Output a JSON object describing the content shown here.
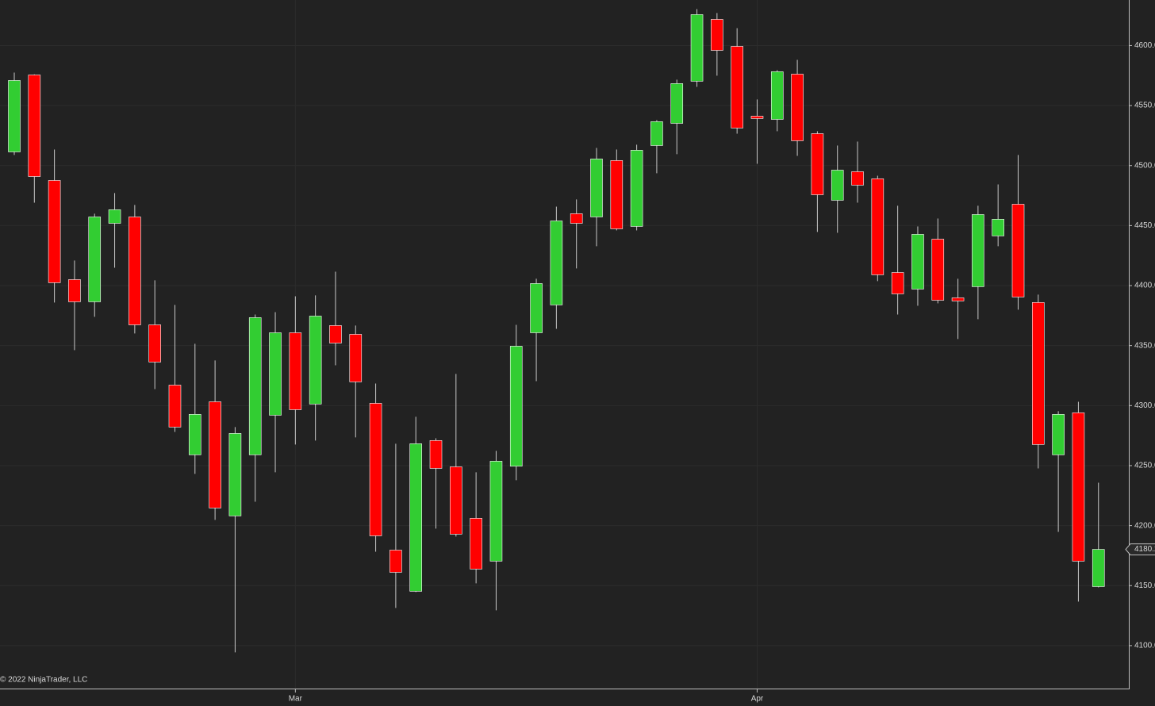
{
  "chart_data": {
    "type": "candlestick",
    "watermark": "© 2022 NinjaTrader, LLC",
    "categories": [
      null,
      null,
      null,
      null,
      null,
      null,
      null,
      null,
      null,
      null,
      null,
      null,
      null,
      null,
      "Mar",
      null,
      null,
      null,
      null,
      null,
      null,
      null,
      null,
      null,
      null,
      null,
      null,
      null,
      null,
      null,
      null,
      null,
      null,
      null,
      null,
      null,
      null,
      "Apr",
      null,
      null,
      null,
      null,
      null,
      null,
      null,
      null,
      null,
      null,
      null,
      null,
      null,
      null,
      null,
      null,
      null
    ],
    "open": [
      4511.4,
      4575.5,
      4487.6,
      4405.0,
      4386.5,
      4451.9,
      4457.2,
      4367.3,
      4317.1,
      4259.0,
      4303.2,
      4208.1,
      4259.0,
      4292.0,
      4360.7,
      4301.3,
      4366.7,
      4359.4,
      4301.9,
      4179.6,
      4145.3,
      4270.9,
      4249.0,
      4206.1,
      4170.4,
      4249.5,
      4360.7,
      4383.9,
      4459.9,
      4457.2,
      4504.2,
      4449.3,
      4516.7,
      4535.2,
      4570.3,
      4621.8,
      4599.3,
      4541.2,
      4538.5,
      4576.2,
      4526.6,
      4471.1,
      4494.9,
      4489.0,
      4410.9,
      4397.1,
      4438.7,
      4389.8,
      4399.1,
      4441.4,
      4467.8,
      4385.9,
      4259.0,
      4294.0,
      4149.2
    ],
    "high": [
      4577.5,
      4576.0,
      4513.4,
      4420.9,
      4459.9,
      4477.1,
      4467.2,
      4404.4,
      4383.9,
      4351.5,
      4337.6,
      4282.1,
      4375.9,
      4377.9,
      4391.1,
      4391.8,
      4411.6,
      4366.7,
      4318.4,
      4268.2,
      4290.7,
      4272.8,
      4326.4,
      4244.4,
      4262.3,
      4367.3,
      4405.7,
      4465.8,
      4471.8,
      4514.7,
      4513.4,
      4517.4,
      4537.9,
      4571.6,
      4630.4,
      4627.1,
      4614.5,
      4555.1,
      4579.5,
      4588.1,
      4528.6,
      4516.7,
      4520.0,
      4491.6,
      4466.5,
      4449.3,
      4455.9,
      4405.7,
      4466.5,
      4484.3,
      4508.8,
      4392.5,
      4295.3,
      4303.2,
      4235.8
    ],
    "low": [
      4508.8,
      4469.1,
      4385.9,
      4346.2,
      4374.0,
      4414.9,
      4360.1,
      4313.8,
      4278.1,
      4243.1,
      4204.8,
      4094.4,
      4219.9,
      4244.4,
      4267.6,
      4270.9,
      4333.6,
      4273.5,
      4178.3,
      4131.4,
      4144.6,
      4197.5,
      4190.9,
      4151.9,
      4129.4,
      4237.8,
      4320.4,
      4364.0,
      4414.3,
      4432.8,
      4446.0,
      4446.0,
      4493.6,
      4509.5,
      4565.6,
      4574.9,
      4526.6,
      4501.5,
      4528.6,
      4508.1,
      4444.7,
      4444.0,
      4469.1,
      4403.7,
      4375.9,
      4383.2,
      4385.2,
      4355.5,
      4372.0,
      4432.8,
      4379.9,
      4247.7,
      4194.8,
      4136.7,
      4148.5
    ],
    "close": [
      4570.9,
      4490.9,
      4402.4,
      4386.5,
      4457.2,
      4463.2,
      4367.3,
      4336.3,
      4282.1,
      4292.7,
      4214.7,
      4276.8,
      4373.3,
      4360.7,
      4296.6,
      4374.6,
      4352.1,
      4319.8,
      4191.5,
      4161.1,
      4268.2,
      4247.7,
      4192.9,
      4163.8,
      4253.7,
      4349.5,
      4401.7,
      4453.9,
      4451.9,
      4505.5,
      4447.3,
      4512.8,
      4536.6,
      4568.3,
      4625.8,
      4596.0,
      4531.3,
      4539.2,
      4578.2,
      4520.7,
      4475.7,
      4496.2,
      4483.7,
      4409.0,
      4393.1,
      4442.7,
      4387.8,
      4387.2,
      4459.2,
      4455.3,
      4390.5,
      4267.6,
      4292.7,
      4170.4,
      4180.2
    ],
    "last_price": 4180.2,
    "up_color": "#32cd32",
    "down_color": "#ff0000",
    "ylim": [
      4046,
      4634
    ],
    "yticks": [
      {
        "value": 4100,
        "label": "4100.0"
      },
      {
        "value": 4150,
        "label": "4150.0"
      },
      {
        "value": 4200,
        "label": "4200.0"
      },
      {
        "value": 4250,
        "label": "4250.0"
      },
      {
        "value": 4300,
        "label": "4300.0"
      },
      {
        "value": 4350,
        "label": "4350.0"
      },
      {
        "value": 4400,
        "label": "4400.0"
      },
      {
        "value": 4450,
        "label": "4450.0"
      },
      {
        "value": 4500,
        "label": "4500.0"
      },
      {
        "value": 4550,
        "label": "4550.0"
      },
      {
        "value": 4600,
        "label": "4600.0"
      }
    ],
    "grid": true
  }
}
